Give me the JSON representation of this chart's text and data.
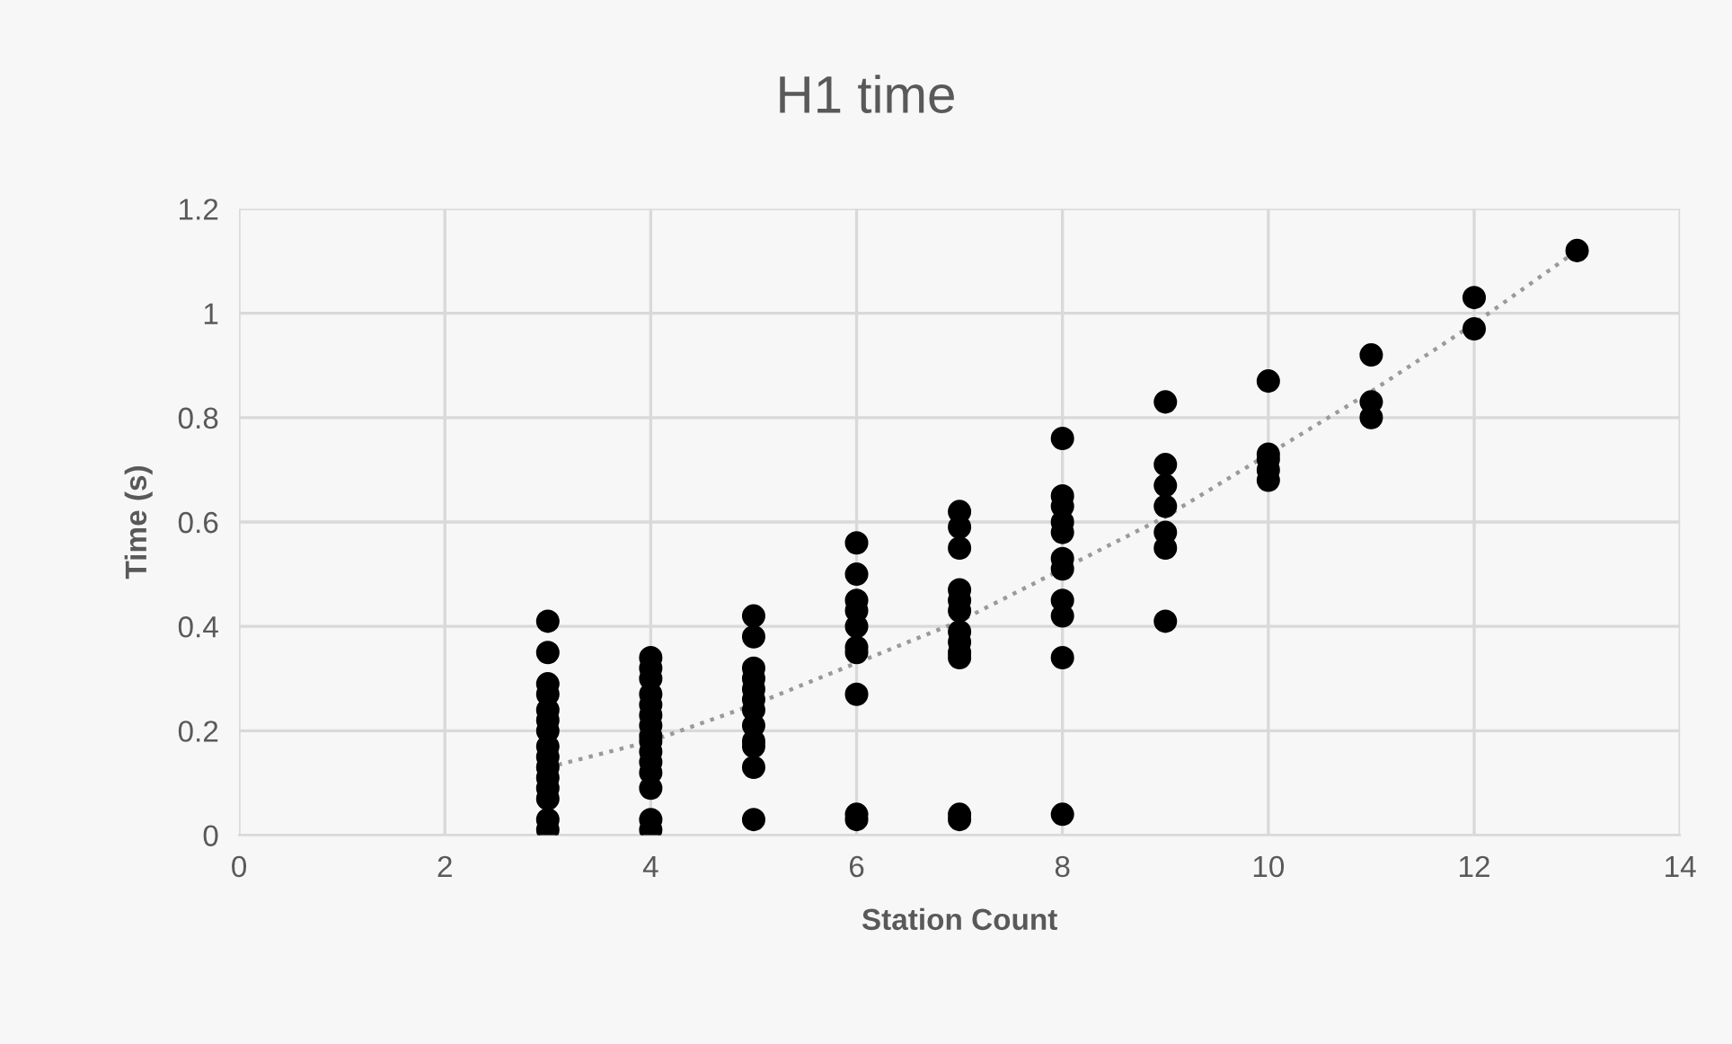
{
  "chart_data": {
    "type": "scatter",
    "title": "H1 time",
    "xlabel": "Station Count",
    "ylabel": "Time (s)",
    "xlim": [
      0,
      14
    ],
    "xticks": [
      0,
      2,
      4,
      6,
      8,
      10,
      12,
      14
    ],
    "ylim": [
      0,
      1.2
    ],
    "yticks": [
      0,
      0.2,
      0.4,
      0.6,
      0.8,
      1,
      1.2
    ],
    "grid": true,
    "series": [
      {
        "marker": "circle",
        "color": "#000000",
        "x": [
          3,
          3,
          3,
          3,
          3,
          3,
          3,
          3,
          3,
          3,
          3,
          3,
          3,
          3,
          3,
          4,
          4,
          4,
          4,
          4,
          4,
          4,
          4,
          4,
          4,
          4,
          4,
          4,
          4,
          4,
          5,
          5,
          5,
          5,
          5,
          5,
          5,
          5,
          5,
          5,
          5,
          5,
          6,
          6,
          6,
          6,
          6,
          6,
          6,
          6,
          6,
          6,
          7,
          7,
          7,
          7,
          7,
          7,
          7,
          7,
          7,
          7,
          7,
          7,
          8,
          8,
          8,
          8,
          8,
          8,
          8,
          8,
          8,
          8,
          8,
          9,
          9,
          9,
          9,
          9,
          9,
          9,
          10,
          10,
          10,
          10,
          10,
          11,
          11,
          11,
          12,
          12,
          13
        ],
        "values": [
          0.41,
          0.35,
          0.29,
          0.27,
          0.24,
          0.22,
          0.2,
          0.17,
          0.15,
          0.13,
          0.11,
          0.09,
          0.07,
          0.03,
          0.01,
          0.34,
          0.32,
          0.3,
          0.27,
          0.25,
          0.23,
          0.21,
          0.19,
          0.18,
          0.16,
          0.14,
          0.12,
          0.09,
          0.03,
          0.01,
          0.42,
          0.38,
          0.32,
          0.3,
          0.28,
          0.26,
          0.24,
          0.21,
          0.18,
          0.17,
          0.13,
          0.03,
          0.56,
          0.5,
          0.45,
          0.43,
          0.4,
          0.36,
          0.35,
          0.27,
          0.04,
          0.03,
          0.62,
          0.59,
          0.55,
          0.47,
          0.45,
          0.43,
          0.39,
          0.37,
          0.35,
          0.34,
          0.04,
          0.03,
          0.76,
          0.65,
          0.63,
          0.6,
          0.58,
          0.53,
          0.51,
          0.45,
          0.42,
          0.34,
          0.04,
          0.83,
          0.71,
          0.67,
          0.63,
          0.58,
          0.55,
          0.41,
          0.87,
          0.73,
          0.72,
          0.7,
          0.68,
          0.92,
          0.83,
          0.8,
          1.03,
          0.97,
          1.12
        ]
      },
      {
        "type": "line",
        "color": "#9a9a9a",
        "line_style": "dotted",
        "marker": "none",
        "x": [
          3,
          4,
          5,
          6,
          7,
          8,
          9,
          10,
          11,
          12,
          13
        ],
        "values": [
          0.13,
          0.18,
          0.25,
          0.33,
          0.41,
          0.51,
          0.61,
          0.73,
          0.85,
          0.98,
          1.12
        ]
      }
    ]
  }
}
